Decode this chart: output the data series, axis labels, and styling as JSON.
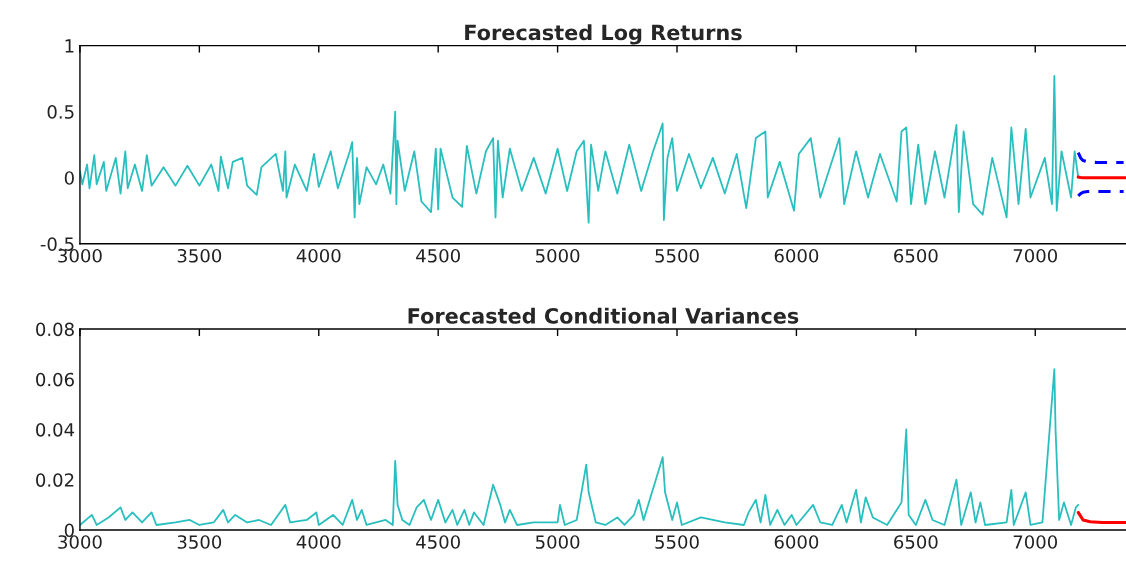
{
  "chart_data": [
    {
      "type": "line",
      "title": "Forecasted Log Returns",
      "xlim": [
        3000,
        7380
      ],
      "xticks": [
        3000,
        3500,
        4000,
        4500,
        5000,
        5500,
        6000,
        6500,
        7000
      ],
      "ylim": [
        -0.5,
        1
      ],
      "yticks": [
        -0.5,
        0,
        0.5,
        1
      ],
      "grid": false,
      "legend": false,
      "series": [
        {
          "color": "#2abfbf",
          "line_style": "solid",
          "x": [
            3000,
            3010,
            3030,
            3040,
            3060,
            3070,
            3100,
            3110,
            3150,
            3170,
            3190,
            3200,
            3230,
            3260,
            3280,
            3300,
            3350,
            3400,
            3450,
            3500,
            3550,
            3580,
            3590,
            3620,
            3640,
            3680,
            3700,
            3740,
            3760,
            3820,
            3850,
            3860,
            3865,
            3900,
            3950,
            3980,
            4000,
            4050,
            4080,
            4130,
            4140,
            4150,
            4160,
            4170,
            4200,
            4240,
            4270,
            4300,
            4320,
            4325,
            4330,
            4360,
            4400,
            4430,
            4470,
            4490,
            4500,
            4510,
            4560,
            4600,
            4620,
            4660,
            4700,
            4730,
            4740,
            4750,
            4770,
            4800,
            4850,
            4900,
            4950,
            5000,
            5040,
            5080,
            5110,
            5130,
            5140,
            5170,
            5200,
            5250,
            5300,
            5350,
            5400,
            5440,
            5445,
            5460,
            5480,
            5500,
            5550,
            5600,
            5650,
            5700,
            5750,
            5790,
            5830,
            5870,
            5880,
            5930,
            5990,
            6010,
            6060,
            6100,
            6180,
            6200,
            6250,
            6300,
            6350,
            6420,
            6440,
            6460,
            6480,
            6510,
            6540,
            6580,
            6620,
            6670,
            6680,
            6700,
            6740,
            6780,
            6820,
            6880,
            6900,
            6930,
            6960,
            6980,
            7040,
            7070,
            7080,
            7090,
            7110,
            7150,
            7165,
            7180
          ],
          "values": [
            0.05,
            -0.05,
            0.1,
            -0.08,
            0.17,
            -0.05,
            0.12,
            -0.1,
            0.15,
            -0.12,
            0.2,
            -0.08,
            0.1,
            -0.1,
            0.17,
            -0.06,
            0.08,
            -0.06,
            0.09,
            -0.06,
            0.1,
            -0.1,
            0.16,
            -0.08,
            0.12,
            0.15,
            -0.06,
            -0.13,
            0.08,
            0.18,
            -0.1,
            0.2,
            -0.15,
            0.1,
            -0.1,
            0.18,
            -0.07,
            0.2,
            -0.08,
            0.2,
            0.27,
            -0.3,
            0.15,
            -0.2,
            0.08,
            -0.05,
            0.1,
            -0.12,
            0.5,
            -0.2,
            0.28,
            -0.1,
            0.2,
            -0.18,
            -0.26,
            0.22,
            -0.24,
            0.22,
            -0.15,
            -0.22,
            0.24,
            -0.12,
            0.2,
            0.3,
            -0.3,
            0.28,
            -0.15,
            0.22,
            -0.1,
            0.15,
            -0.12,
            0.22,
            -0.1,
            0.2,
            0.28,
            -0.34,
            0.25,
            -0.1,
            0.2,
            -0.12,
            0.25,
            -0.1,
            0.2,
            0.41,
            -0.32,
            0.15,
            0.3,
            -0.1,
            0.18,
            -0.08,
            0.15,
            -0.12,
            0.18,
            -0.23,
            0.3,
            0.35,
            -0.15,
            0.12,
            -0.25,
            0.18,
            0.3,
            -0.15,
            0.3,
            -0.2,
            0.2,
            -0.15,
            0.18,
            -0.18,
            0.35,
            0.38,
            -0.2,
            0.25,
            -0.2,
            0.2,
            -0.15,
            0.4,
            -0.26,
            0.35,
            -0.2,
            -0.28,
            0.15,
            -0.3,
            0.38,
            -0.2,
            0.37,
            -0.15,
            0.15,
            -0.2,
            0.77,
            -0.25,
            0.2,
            -0.15,
            0.2,
            0.0
          ]
        },
        {
          "color": "#ff0000",
          "line_style": "solid",
          "x": [
            7180,
            7190,
            7200,
            7220,
            7260,
            7300,
            7380
          ],
          "values": [
            0.005,
            0.002,
            0,
            0,
            0,
            0,
            0
          ]
        },
        {
          "color": "#0000ff",
          "line_style": "dashed",
          "x": [
            7180,
            7190,
            7200,
            7220,
            7260,
            7300,
            7370
          ],
          "values": [
            0.19,
            0.15,
            0.13,
            0.12,
            0.115,
            0.115,
            0.115
          ]
        },
        {
          "color": "#0000ff",
          "line_style": "dashed",
          "x": [
            7180,
            7190,
            7200,
            7220,
            7260,
            7300,
            7370
          ],
          "values": [
            -0.137,
            -0.12,
            -0.11,
            -0.105,
            -0.105,
            -0.105,
            -0.105
          ]
        }
      ]
    },
    {
      "type": "line",
      "title": "Forecasted Conditional Variances",
      "xlim": [
        3000,
        7380
      ],
      "xticks": [
        3000,
        3500,
        4000,
        4500,
        5000,
        5500,
        6000,
        6500,
        7000
      ],
      "ylim": [
        0,
        0.08
      ],
      "yticks": [
        0,
        0.02,
        0.04,
        0.06,
        0.08
      ],
      "grid": false,
      "legend": false,
      "series": [
        {
          "color": "#2abfbf",
          "line_style": "solid",
          "x": [
            3000,
            3050,
            3070,
            3120,
            3170,
            3190,
            3220,
            3260,
            3300,
            3320,
            3400,
            3460,
            3500,
            3560,
            3600,
            3620,
            3650,
            3700,
            3750,
            3800,
            3860,
            3880,
            3950,
            3990,
            4000,
            4060,
            4100,
            4140,
            4160,
            4180,
            4200,
            4280,
            4310,
            4320,
            4330,
            4350,
            4380,
            4410,
            4440,
            4470,
            4500,
            4530,
            4560,
            4580,
            4610,
            4630,
            4650,
            4690,
            4730,
            4760,
            4780,
            4800,
            4830,
            4900,
            5000,
            5010,
            5030,
            5080,
            5120,
            5130,
            5160,
            5200,
            5250,
            5280,
            5320,
            5340,
            5360,
            5440,
            5450,
            5480,
            5500,
            5520,
            5600,
            5700,
            5780,
            5800,
            5830,
            5850,
            5870,
            5890,
            5920,
            5950,
            5980,
            6000,
            6070,
            6100,
            6150,
            6190,
            6210,
            6250,
            6270,
            6290,
            6320,
            6380,
            6440,
            6460,
            6470,
            6500,
            6540,
            6570,
            6620,
            6670,
            6690,
            6730,
            6750,
            6770,
            6790,
            6880,
            6900,
            6910,
            6960,
            6980,
            7030,
            7080,
            7085,
            7100,
            7120,
            7150,
            7170,
            7180
          ],
          "values": [
            0.002,
            0.006,
            0.002,
            0.005,
            0.009,
            0.004,
            0.007,
            0.003,
            0.007,
            0.002,
            0.003,
            0.004,
            0.002,
            0.003,
            0.008,
            0.003,
            0.006,
            0.003,
            0.004,
            0.002,
            0.01,
            0.003,
            0.004,
            0.007,
            0.002,
            0.006,
            0.002,
            0.012,
            0.004,
            0.008,
            0.002,
            0.004,
            0.002,
            0.0275,
            0.01,
            0.004,
            0.002,
            0.009,
            0.012,
            0.004,
            0.012,
            0.003,
            0.008,
            0.002,
            0.008,
            0.002,
            0.007,
            0.002,
            0.018,
            0.01,
            0.003,
            0.008,
            0.002,
            0.003,
            0.003,
            0.01,
            0.002,
            0.004,
            0.026,
            0.015,
            0.003,
            0.002,
            0.005,
            0.002,
            0.006,
            0.012,
            0.004,
            0.029,
            0.015,
            0.004,
            0.011,
            0.002,
            0.005,
            0.003,
            0.002,
            0.007,
            0.012,
            0.003,
            0.014,
            0.002,
            0.008,
            0.002,
            0.006,
            0.002,
            0.01,
            0.003,
            0.002,
            0.01,
            0.003,
            0.016,
            0.003,
            0.013,
            0.005,
            0.002,
            0.011,
            0.04,
            0.006,
            0.002,
            0.012,
            0.004,
            0.002,
            0.02,
            0.002,
            0.015,
            0.003,
            0.011,
            0.002,
            0.003,
            0.016,
            0.002,
            0.015,
            0.002,
            0.003,
            0.064,
            0.04,
            0.004,
            0.011,
            0.002,
            0.009,
            0.01
          ]
        },
        {
          "color": "#ff0000",
          "line_style": "solid",
          "x": [
            7180,
            7190,
            7200,
            7230,
            7280,
            7380
          ],
          "values": [
            0.007,
            0.0055,
            0.004,
            0.0033,
            0.003,
            0.003
          ]
        }
      ]
    }
  ]
}
